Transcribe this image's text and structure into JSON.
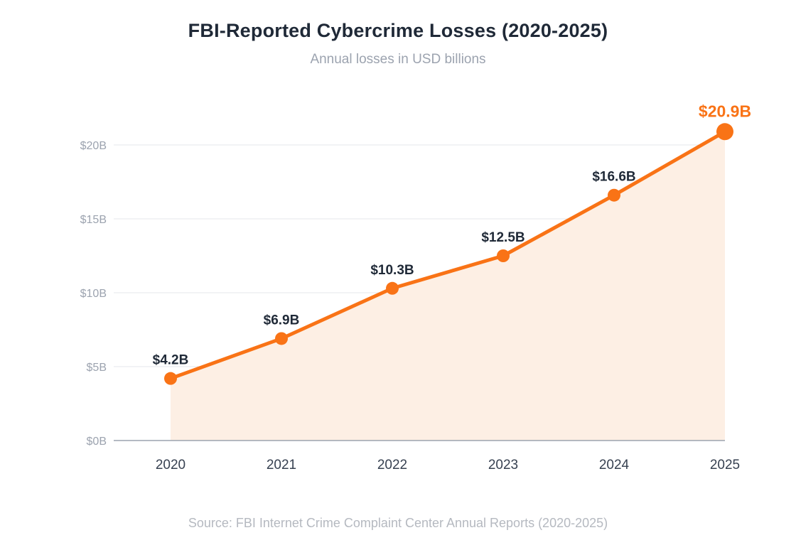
{
  "title": "FBI-Reported Cybercrime Losses (2020-2025)",
  "subtitle": "Annual losses in USD billions",
  "source": "Source: FBI Internet Crime Complaint Center Annual Reports (2020-2025)",
  "colors": {
    "line": "#f97316",
    "area": "#fdefe4",
    "grid": "#e5e7eb",
    "axis": "#9ca3af",
    "label": "#1f2937",
    "highlight": "#f97316"
  },
  "chart_data": {
    "type": "area",
    "title": "FBI-Reported Cybercrime Losses (2020-2025)",
    "subtitle": "Annual losses in USD billions",
    "categories": [
      "2020",
      "2021",
      "2022",
      "2023",
      "2024",
      "2025"
    ],
    "values": [
      4.2,
      6.9,
      10.3,
      12.5,
      16.6,
      20.9
    ],
    "data_labels": [
      "$4.2B",
      "$6.9B",
      "$10.3B",
      "$12.5B",
      "$16.6B",
      "$20.9B"
    ],
    "highlight_index": 5,
    "y_ticks": [
      0,
      5,
      10,
      15,
      20
    ],
    "y_tick_labels": [
      "$0B",
      "$5B",
      "$10B",
      "$15B",
      "$20B"
    ],
    "ylim": [
      0,
      20
    ],
    "xlabel": "",
    "ylabel": "",
    "grid": true,
    "legend": "none"
  }
}
